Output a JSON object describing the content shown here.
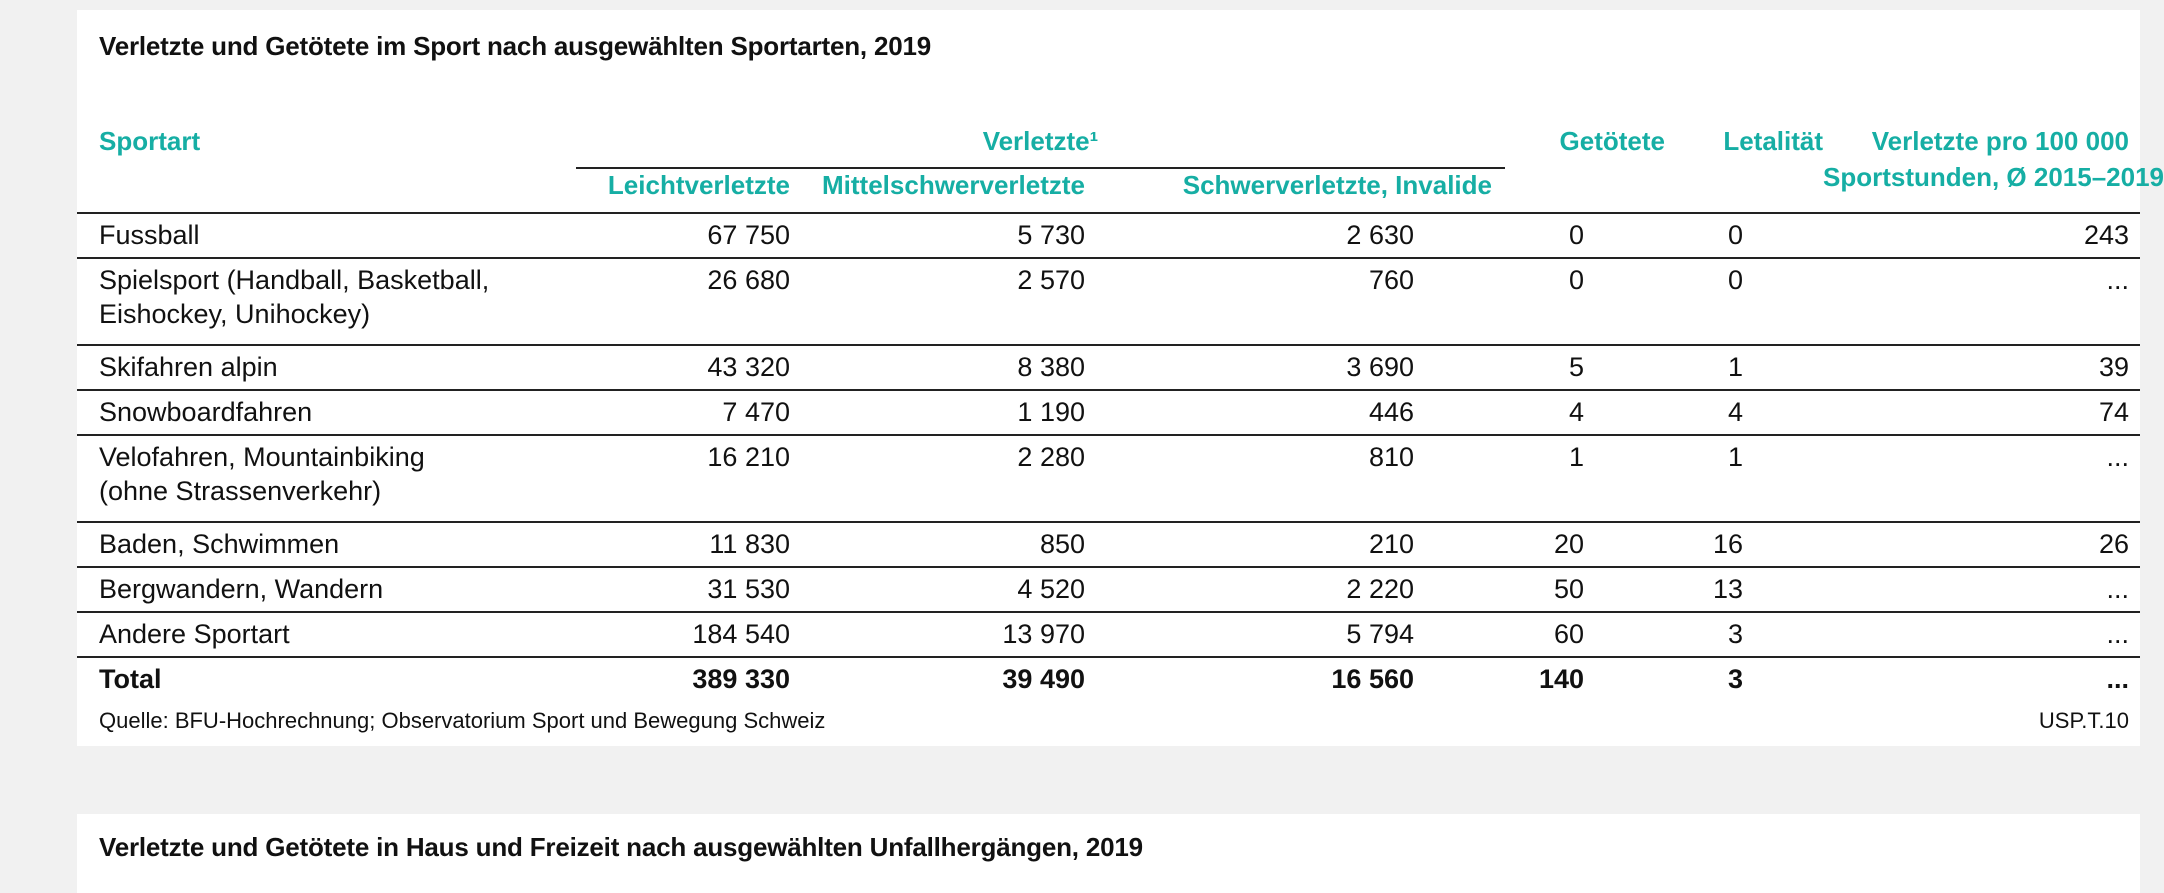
{
  "table1": {
    "title": "Verletzte und Getötete im Sport nach ausgewählten Sportarten, 2019",
    "headers": {
      "sportart": "Sportart",
      "verletzte_group": "Verletzte¹",
      "leicht": "Leichtverletzte",
      "mittel": "Mittelschwerverletzte",
      "schwer": "Schwerverletzte, Invalide",
      "getoetete": "Getötete",
      "letalitaet": "Letalität",
      "pro100k_line1": "Verletzte pro 100 000",
      "pro100k_line2": "Sportstunden, Ø 2015–2019"
    },
    "rows": [
      {
        "sport_l1": "Fussball",
        "sport_l2": "",
        "leicht": "67 750",
        "mittel": "5 730",
        "schwer": "2 630",
        "getoetete": "0",
        "letalitaet": "0",
        "pro100k": "243"
      },
      {
        "sport_l1": "Spielsport (Handball, Basketball,",
        "sport_l2": "Eishockey, Unihockey)",
        "leicht": "26 680",
        "mittel": "2 570",
        "schwer": "760",
        "getoetete": "0",
        "letalitaet": "0",
        "pro100k": "..."
      },
      {
        "sport_l1": "Skifahren alpin",
        "sport_l2": "",
        "leicht": "43 320",
        "mittel": "8 380",
        "schwer": "3 690",
        "getoetete": "5",
        "letalitaet": "1",
        "pro100k": "39"
      },
      {
        "sport_l1": "Snowboardfahren",
        "sport_l2": "",
        "leicht": "7 470",
        "mittel": "1 190",
        "schwer": "446",
        "getoetete": "4",
        "letalitaet": "4",
        "pro100k": "74"
      },
      {
        "sport_l1": "Velofahren, Mountainbiking",
        "sport_l2": "(ohne Strassenverkehr)",
        "leicht": "16 210",
        "mittel": "2 280",
        "schwer": "810",
        "getoetete": "1",
        "letalitaet": "1",
        "pro100k": "..."
      },
      {
        "sport_l1": "Baden, Schwimmen",
        "sport_l2": "",
        "leicht": "11 830",
        "mittel": "850",
        "schwer": "210",
        "getoetete": "20",
        "letalitaet": "16",
        "pro100k": "26"
      },
      {
        "sport_l1": "Bergwandern, Wandern",
        "sport_l2": "",
        "leicht": "31 530",
        "mittel": "4 520",
        "schwer": "2 220",
        "getoetete": "50",
        "letalitaet": "13",
        "pro100k": "..."
      },
      {
        "sport_l1": "Andere Sportart",
        "sport_l2": "",
        "leicht": "184 540",
        "mittel": "13 970",
        "schwer": "5 794",
        "getoetete": "60",
        "letalitaet": "3",
        "pro100k": "..."
      }
    ],
    "total": {
      "label": "Total",
      "leicht": "389 330",
      "mittel": "39 490",
      "schwer": "16 560",
      "getoetete": "140",
      "letalitaet": "3",
      "pro100k": "..."
    },
    "source": "Quelle: BFU-Hochrechnung; Observatorium Sport und Bewegung Schweiz",
    "code": "USP.T.10"
  },
  "table2": {
    "title": "Verletzte und Getötete in Haus und Freizeit nach ausgewählten Unfallhergängen, 2019"
  },
  "colors": {
    "accent": "#16aea4",
    "background": "#f1f1f1",
    "card": "#ffffff",
    "rule": "#222222"
  }
}
